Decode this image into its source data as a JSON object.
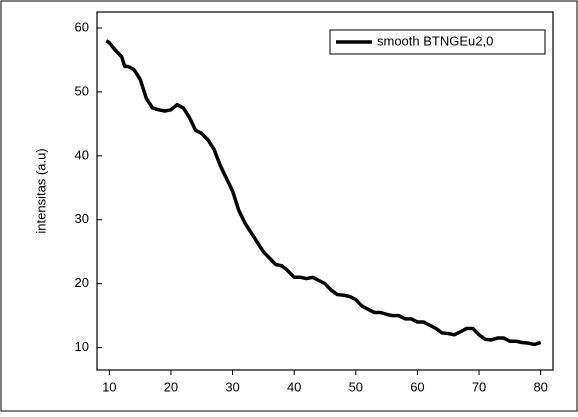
{
  "chart_data": {
    "type": "line",
    "ylabel": "intensitas (a.u)",
    "x": [
      9.5,
      10,
      11,
      12,
      12.5,
      13,
      14,
      15,
      16,
      17,
      18,
      19,
      20,
      21,
      22,
      23,
      24,
      25,
      26,
      27,
      28,
      29,
      30,
      31,
      32,
      33,
      34,
      35,
      36,
      37,
      38,
      39,
      40,
      41,
      42,
      43,
      44,
      45,
      46,
      47,
      48,
      49,
      50,
      51,
      52,
      53,
      54,
      55,
      56,
      57,
      58,
      59,
      60,
      61,
      62,
      63,
      64,
      65,
      66,
      67,
      68,
      69,
      70,
      71,
      72,
      73,
      74,
      75,
      76,
      77,
      78,
      79,
      80
    ],
    "series": [
      {
        "name": "smooth BTNGEu2,0",
        "color": "#000000",
        "values": [
          58,
          57.7,
          56.5,
          55.5,
          54,
          54,
          53.5,
          52,
          49,
          47.5,
          47.2,
          47,
          47.2,
          48,
          47.5,
          46,
          44,
          43.5,
          42.5,
          41,
          38.5,
          36.5,
          34.5,
          31.5,
          29.5,
          28,
          26.5,
          25,
          24,
          23,
          22.8,
          22,
          21,
          21,
          20.8,
          21,
          20.5,
          20,
          19,
          18.3,
          18.2,
          18,
          17.5,
          16.5,
          16,
          15.5,
          15.5,
          15.2,
          15,
          15,
          14.5,
          14.5,
          14,
          14,
          13.5,
          13,
          12.3,
          12.2,
          12,
          12.5,
          13,
          13,
          12,
          11.3,
          11.2,
          11.5,
          11.5,
          11,
          11,
          10.8,
          10.7,
          10.5,
          10.8
        ]
      }
    ],
    "xlim": [
      8,
      82
    ],
    "xticks": [
      10,
      20,
      30,
      40,
      50,
      60,
      70,
      80
    ],
    "ylim": [
      6.5,
      62.5
    ],
    "yticks": [
      10,
      20,
      30,
      40,
      50,
      60
    ],
    "legend": "upper right"
  }
}
